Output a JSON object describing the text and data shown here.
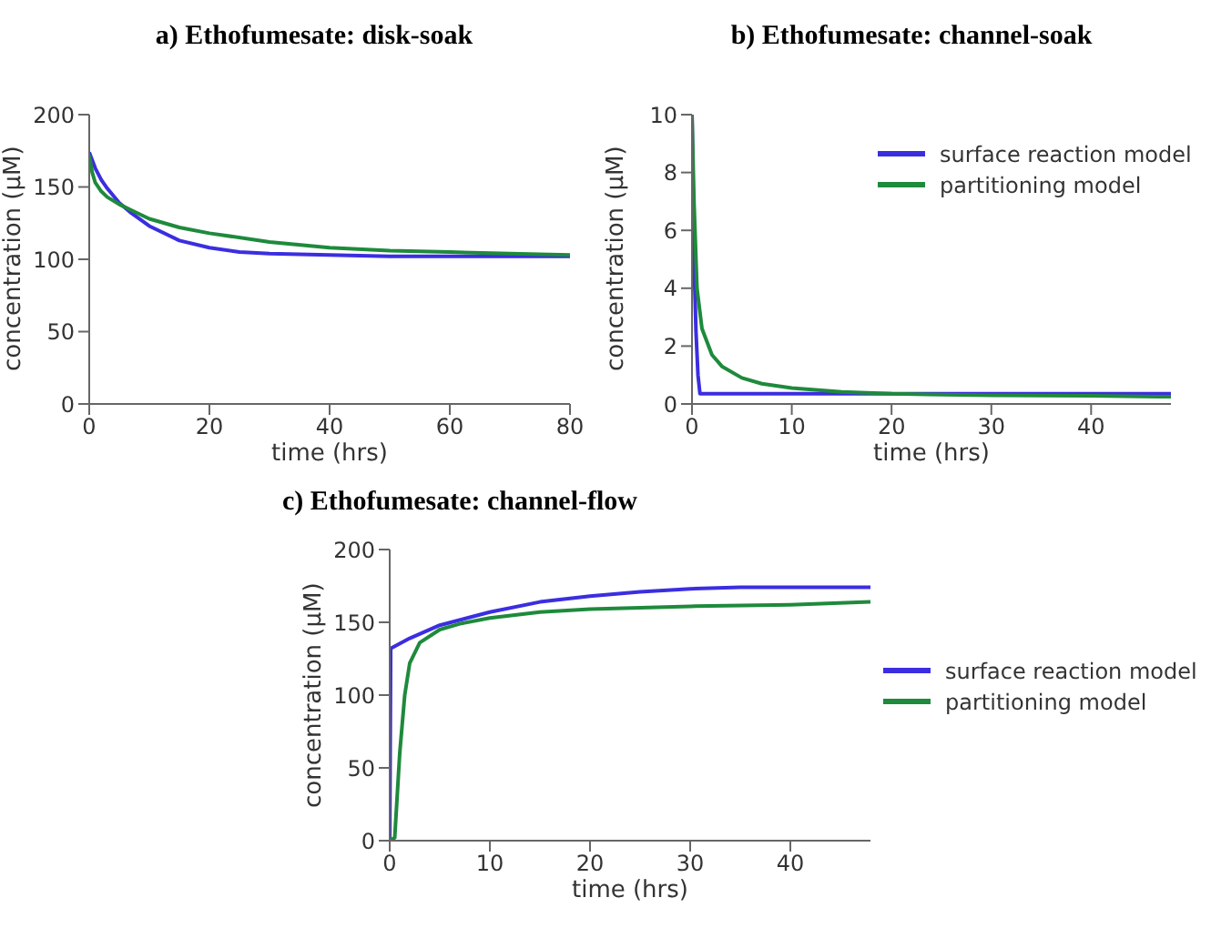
{
  "chart_data": [
    {
      "type": "line",
      "title": "a) Ethofumesate: disk-soak",
      "xlabel": "time (hrs)",
      "ylabel": "concentration (μM)",
      "xlim": [
        0,
        80
      ],
      "xticks": [
        0,
        20,
        40,
        60,
        80
      ],
      "ylim": [
        0,
        200
      ],
      "yticks": [
        0,
        50,
        100,
        150,
        200
      ],
      "grid": false,
      "legend": false,
      "marker": "none",
      "line_style": "solid",
      "series": [
        {
          "color": "#3b2ee0",
          "x": [
            0,
            1,
            2,
            3,
            5,
            7,
            10,
            13,
            15,
            20,
            25,
            30,
            40,
            50,
            60,
            80
          ],
          "values": [
            174,
            163,
            155,
            149,
            139,
            132,
            123,
            117,
            113,
            108,
            105,
            104,
            103,
            102,
            102,
            102
          ]
        },
        {
          "color": "#1e8a3c",
          "x": [
            0,
            0.5,
            1,
            2,
            3,
            5,
            7,
            10,
            15,
            20,
            30,
            40,
            50,
            60,
            70,
            80
          ],
          "values": [
            172,
            160,
            153,
            147,
            143,
            138,
            134,
            128,
            122,
            118,
            112,
            108,
            106,
            105,
            104,
            103
          ]
        }
      ]
    },
    {
      "type": "line",
      "title": "b) Ethofumesate: channel-soak",
      "xlabel": "time (hrs)",
      "ylabel": "concentration (μM)",
      "xlim": [
        0,
        48
      ],
      "xticks": [
        0,
        10,
        20,
        30,
        40
      ],
      "ylim": [
        0,
        10
      ],
      "yticks": [
        0,
        2,
        4,
        6,
        8,
        10
      ],
      "grid": false,
      "legend": "top right",
      "marker": "none",
      "line_style": "solid",
      "series": [
        {
          "name": "surface reaction model",
          "color": "#3b2ee0",
          "x": [
            0,
            0.2,
            0.4,
            0.6,
            0.8,
            10,
            20,
            30,
            48
          ],
          "values": [
            10,
            5,
            2.5,
            1,
            0.35,
            0.35,
            0.35,
            0.35,
            0.35
          ]
        },
        {
          "name": "partitioning model",
          "color": "#1e8a3c",
          "x": [
            0,
            0.2,
            0.5,
            1,
            2,
            3,
            5,
            7,
            10,
            15,
            20,
            30,
            40,
            48
          ],
          "values": [
            10,
            7,
            4,
            2.6,
            1.7,
            1.3,
            0.9,
            0.7,
            0.55,
            0.42,
            0.35,
            0.3,
            0.28,
            0.25
          ]
        }
      ]
    },
    {
      "type": "line",
      "title": "c) Ethofumesate: channel-flow",
      "xlabel": "time (hrs)",
      "ylabel": "concentration (μM)",
      "xlim": [
        0,
        48
      ],
      "xticks": [
        0,
        10,
        20,
        30,
        40
      ],
      "ylim": [
        0,
        200
      ],
      "yticks": [
        0,
        50,
        100,
        150,
        200
      ],
      "grid": false,
      "legend": "right",
      "marker": "none",
      "line_style": "solid",
      "series": [
        {
          "name": "surface reaction model",
          "color": "#3b2ee0",
          "x": [
            0,
            0.1,
            2,
            5,
            10,
            15,
            20,
            25,
            30,
            35,
            40,
            48
          ],
          "values": [
            0,
            132,
            139,
            148,
            157,
            164,
            168,
            171,
            173,
            174,
            174,
            174
          ]
        },
        {
          "name": "partitioning model",
          "color": "#1e8a3c",
          "x": [
            0,
            0.5,
            1,
            1.5,
            2,
            3,
            5,
            7,
            10,
            15,
            20,
            30,
            40,
            48
          ],
          "values": [
            0,
            2,
            60,
            100,
            122,
            136,
            145,
            149,
            153,
            157,
            159,
            161,
            162,
            164
          ]
        }
      ]
    }
  ]
}
